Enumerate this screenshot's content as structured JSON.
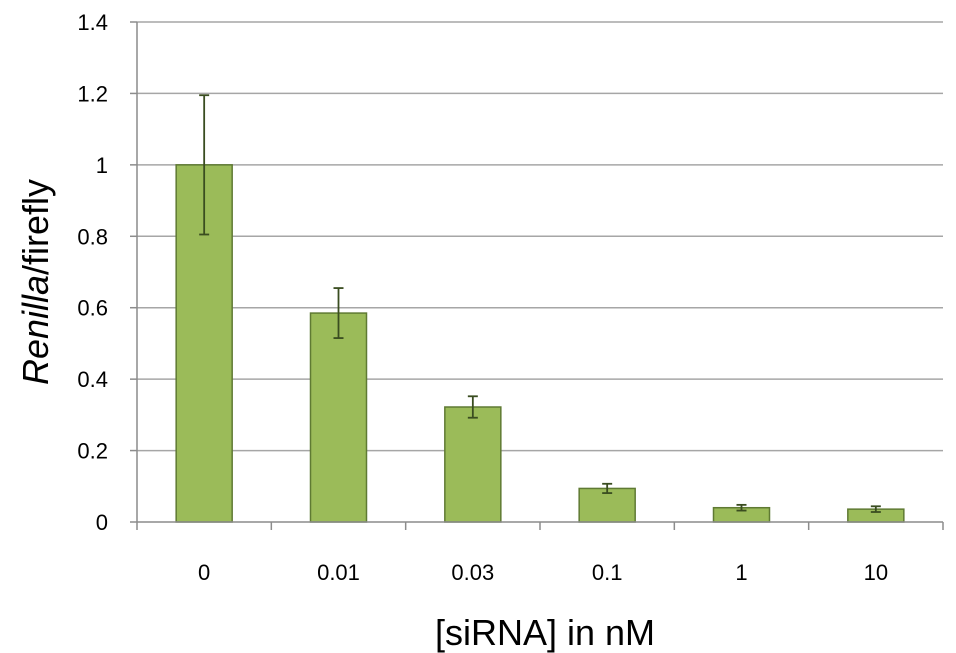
{
  "chart_data": {
    "type": "bar",
    "title": "",
    "categories": [
      "0",
      "0.01",
      "0.03",
      "0.1",
      "1",
      "10"
    ],
    "values": [
      1.0,
      0.585,
      0.322,
      0.094,
      0.04,
      0.036
    ],
    "errors": [
      0.195,
      0.07,
      0.03,
      0.013,
      0.008,
      0.008
    ],
    "ylabel_italic": "Renilla",
    "ylabel_rest": "/firefly",
    "xlabel": "[siRNA] in nM",
    "ylim": [
      0,
      1.4
    ],
    "yticks": [
      0,
      0.2,
      0.4,
      0.6,
      0.8,
      1,
      1.2,
      1.4
    ],
    "grid": true,
    "legend": "none",
    "colors": {
      "bar_fill": "#9bbb59",
      "bar_stroke": "#5f7a33",
      "error_bar": "#3a4d20",
      "grid": "#a6a6a6",
      "axis": "#8c8c8c"
    }
  }
}
